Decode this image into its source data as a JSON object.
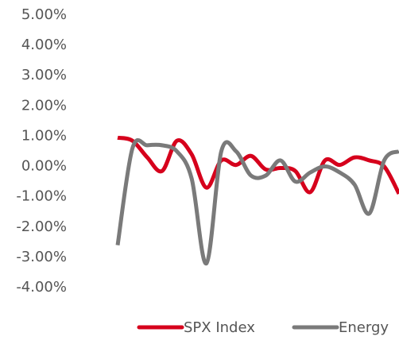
{
  "chart_data": {
    "type": "line",
    "categories": [
      null,
      null,
      null,
      null,
      null,
      null,
      null,
      null,
      null,
      null,
      null,
      null,
      null,
      null,
      null,
      null,
      null,
      null,
      null,
      null
    ],
    "series": [
      {
        "name": "SPX Index",
        "color": "#d6001c",
        "values": [
          0.95,
          0.85,
          0.3,
          -0.15,
          0.85,
          0.4,
          -0.7,
          0.2,
          0.05,
          0.35,
          -0.1,
          -0.05,
          -0.15,
          -0.85,
          0.2,
          0.05,
          0.3,
          0.2,
          0.0,
          -0.9
        ]
      },
      {
        "name": "Energy",
        "color": "#7a7a7a",
        "values": [
          -2.6,
          0.6,
          0.7,
          0.7,
          0.5,
          -0.4,
          -3.2,
          0.5,
          0.5,
          -0.3,
          -0.3,
          0.2,
          -0.5,
          -0.2,
          0.0,
          -0.2,
          -0.6,
          -1.55,
          0.2,
          0.5
        ]
      }
    ],
    "ylim": [
      -4,
      5
    ],
    "yticks": [
      {
        "value": -4,
        "label": "-4.00%"
      },
      {
        "value": -3,
        "label": "-3.00%"
      },
      {
        "value": -2,
        "label": "-2.00%"
      },
      {
        "value": -1,
        "label": "-1.00%"
      },
      {
        "value": 0,
        "label": "0.00%"
      },
      {
        "value": 1,
        "label": "1.00%"
      },
      {
        "value": 2,
        "label": "2.00%"
      },
      {
        "value": 3,
        "label": "3.00%"
      },
      {
        "value": 4,
        "label": "4.00%"
      },
      {
        "value": 5,
        "label": "5.00%"
      }
    ],
    "grid": false,
    "legend": "bottom"
  }
}
